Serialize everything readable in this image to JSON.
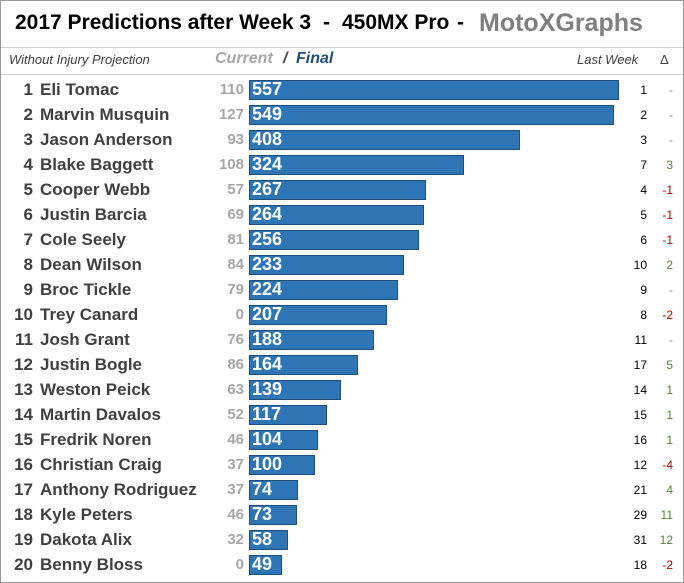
{
  "title": {
    "main": "2017 Predictions after Week 3",
    "separator1": "-",
    "class": "450MX Pro",
    "separator2": "-",
    "brand": "MotoXGraphs"
  },
  "header": {
    "projection_note": "Without Injury Projection",
    "current_label": "Current",
    "slash": "/",
    "final_label": "Final",
    "last_week_label": "Last Week",
    "delta_label": "Δ"
  },
  "colors": {
    "bar": "#2e75b6",
    "delta_up": "#548235",
    "delta_down": "#c00000",
    "delta_same": "#7f7f7f"
  },
  "chart_data": {
    "type": "bar",
    "orientation": "horizontal",
    "categories": [
      "Eli Tomac",
      "Marvin Musquin",
      "Jason Anderson",
      "Blake Baggett",
      "Cooper Webb",
      "Justin Barcia",
      "Cole Seely",
      "Dean Wilson",
      "Broc Tickle",
      "Trey Canard",
      "Josh Grant",
      "Justin Bogle",
      "Weston Peick",
      "Martin Davalos",
      "Fredrik Noren",
      "Christian Craig",
      "Anthony Rodriguez",
      "Kyle Peters",
      "Dakota Alix",
      "Benny Bloss"
    ],
    "series": [
      {
        "name": "Final",
        "values": [
          557,
          549,
          408,
          324,
          267,
          264,
          256,
          233,
          224,
          207,
          188,
          164,
          139,
          117,
          104,
          100,
          74,
          73,
          58,
          49
        ]
      }
    ],
    "rows": [
      {
        "rank": "1",
        "name": "Eli Tomac",
        "current": "110",
        "final": 557,
        "last": "1",
        "delta": "-"
      },
      {
        "rank": "2",
        "name": "Marvin Musquin",
        "current": "127",
        "final": 549,
        "last": "2",
        "delta": "-"
      },
      {
        "rank": "3",
        "name": "Jason Anderson",
        "current": "93",
        "final": 408,
        "last": "3",
        "delta": "-"
      },
      {
        "rank": "4",
        "name": "Blake Baggett",
        "current": "108",
        "final": 324,
        "last": "7",
        "delta": "3"
      },
      {
        "rank": "5",
        "name": "Cooper Webb",
        "current": "57",
        "final": 267,
        "last": "4",
        "delta": "-1"
      },
      {
        "rank": "6",
        "name": "Justin Barcia",
        "current": "69",
        "final": 264,
        "last": "5",
        "delta": "-1"
      },
      {
        "rank": "7",
        "name": "Cole Seely",
        "current": "81",
        "final": 256,
        "last": "6",
        "delta": "-1"
      },
      {
        "rank": "8",
        "name": "Dean Wilson",
        "current": "84",
        "final": 233,
        "last": "10",
        "delta": "2"
      },
      {
        "rank": "9",
        "name": "Broc Tickle",
        "current": "79",
        "final": 224,
        "last": "9",
        "delta": "-"
      },
      {
        "rank": "10",
        "name": "Trey Canard",
        "current": "0",
        "final": 207,
        "last": "8",
        "delta": "-2"
      },
      {
        "rank": "11",
        "name": "Josh Grant",
        "current": "76",
        "final": 188,
        "last": "11",
        "delta": "-"
      },
      {
        "rank": "12",
        "name": "Justin Bogle",
        "current": "86",
        "final": 164,
        "last": "17",
        "delta": "5"
      },
      {
        "rank": "13",
        "name": "Weston Peick",
        "current": "63",
        "final": 139,
        "last": "14",
        "delta": "1"
      },
      {
        "rank": "14",
        "name": "Martin Davalos",
        "current": "52",
        "final": 117,
        "last": "15",
        "delta": "1"
      },
      {
        "rank": "15",
        "name": "Fredrik Noren",
        "current": "46",
        "final": 104,
        "last": "16",
        "delta": "1"
      },
      {
        "rank": "16",
        "name": "Christian Craig",
        "current": "37",
        "final": 100,
        "last": "12",
        "delta": "-4"
      },
      {
        "rank": "17",
        "name": "Anthony Rodriguez",
        "current": "37",
        "final": 74,
        "last": "21",
        "delta": "4"
      },
      {
        "rank": "18",
        "name": "Kyle Peters",
        "current": "46",
        "final": 73,
        "last": "29",
        "delta": "11"
      },
      {
        "rank": "19",
        "name": "Dakota Alix",
        "current": "32",
        "final": 58,
        "last": "31",
        "delta": "12"
      },
      {
        "rank": "20",
        "name": "Benny Bloss",
        "current": "0",
        "final": 49,
        "last": "18",
        "delta": "-2"
      }
    ],
    "xlim": [
      0,
      557
    ],
    "grid": false
  }
}
